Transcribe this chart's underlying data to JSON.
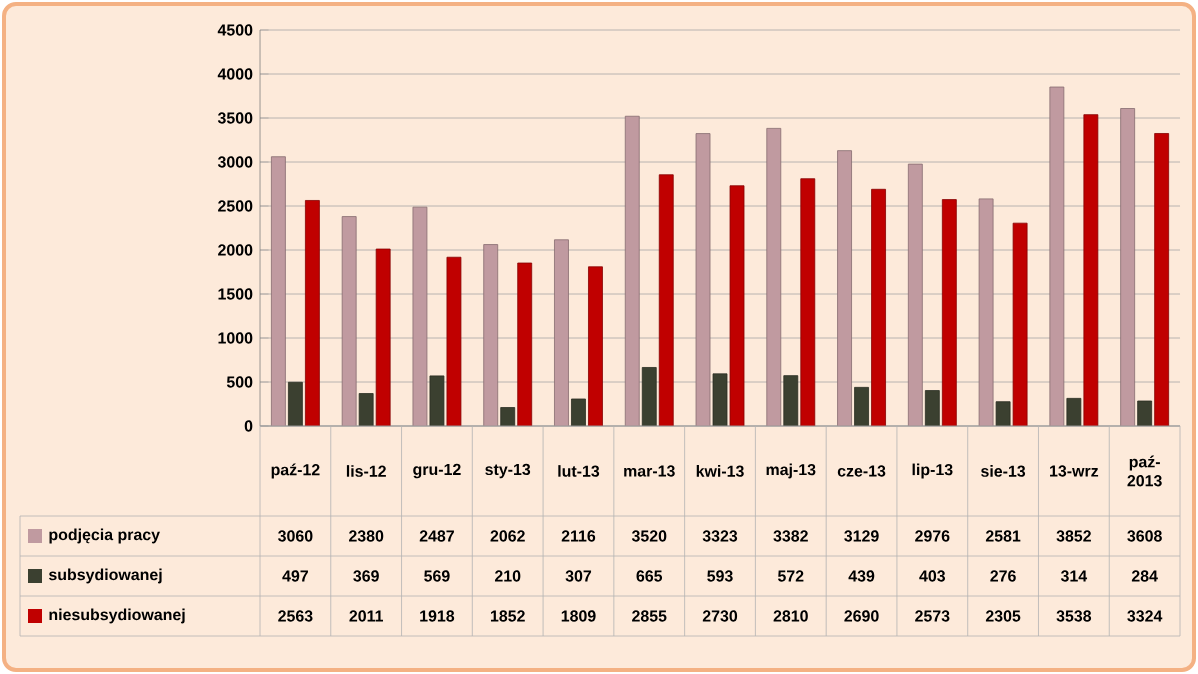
{
  "chart_data": {
    "type": "bar",
    "categories": [
      "paź-12",
      "lis-12",
      "gru-12",
      "sty-13",
      "lut-13",
      "mar-13",
      "kwi-13",
      "maj-13",
      "cze-13",
      "lip-13",
      "sie-13",
      "13-wrz",
      "paź-2013"
    ],
    "series": [
      {
        "name": "podjęcia pracy",
        "color": "#c09aa0",
        "values": [
          3060,
          2380,
          2487,
          2062,
          2116,
          3520,
          3323,
          3382,
          3129,
          2976,
          2581,
          3852,
          3608
        ]
      },
      {
        "name": "subsydiowanej",
        "color": "#3b4030",
        "values": [
          497,
          369,
          569,
          210,
          307,
          665,
          593,
          572,
          439,
          403,
          276,
          314,
          284
        ]
      },
      {
        "name": "niesubsydiowanej",
        "color": "#c00000",
        "values": [
          2563,
          2011,
          1918,
          1852,
          1809,
          2855,
          2730,
          2810,
          2690,
          2573,
          2305,
          3538,
          3324
        ]
      }
    ],
    "ylim": [
      0,
      4500
    ],
    "yticks": [
      0,
      500,
      1000,
      1500,
      2000,
      2500,
      3000,
      3500,
      4000,
      4500
    ],
    "grid": "y",
    "legend": "bottom",
    "data_labels": true
  }
}
